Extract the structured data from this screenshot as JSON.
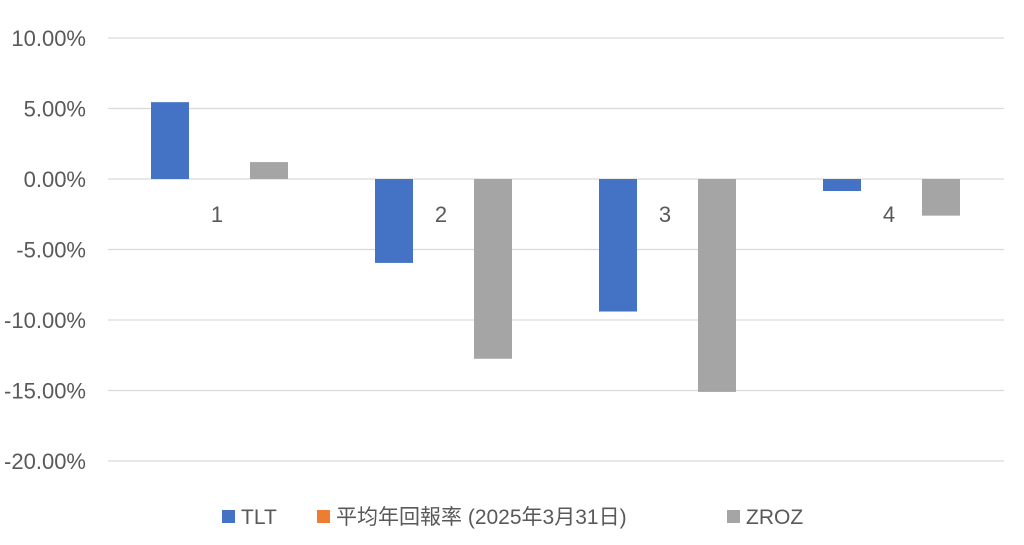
{
  "chart_data": {
    "type": "bar",
    "categories": [
      "1",
      "2",
      "3",
      "4"
    ],
    "series": [
      {
        "name": "TLT",
        "color": "#4472C4",
        "values": [
          0.0545,
          -0.0595,
          -0.094,
          -0.0085
        ]
      },
      {
        "name": "平均年回報率 (2025年3月31日)",
        "color": "#ED7D31",
        "values": [
          0,
          0,
          0,
          0
        ]
      },
      {
        "name": "ZROZ",
        "color": "#A5A5A5",
        "values": [
          0.012,
          -0.1275,
          -0.151,
          -0.026
        ]
      }
    ],
    "ylim": [
      -0.2,
      0.1
    ],
    "yticks": [
      0.1,
      0.05,
      0.0,
      -0.05,
      -0.1,
      -0.15,
      -0.2
    ],
    "ytick_labels": [
      "10.00%",
      "5.00%",
      "0.00%",
      "-5.00%",
      "-10.00%",
      "-15.00%",
      "-20.00%"
    ],
    "grid": true,
    "legend": "bottom"
  }
}
